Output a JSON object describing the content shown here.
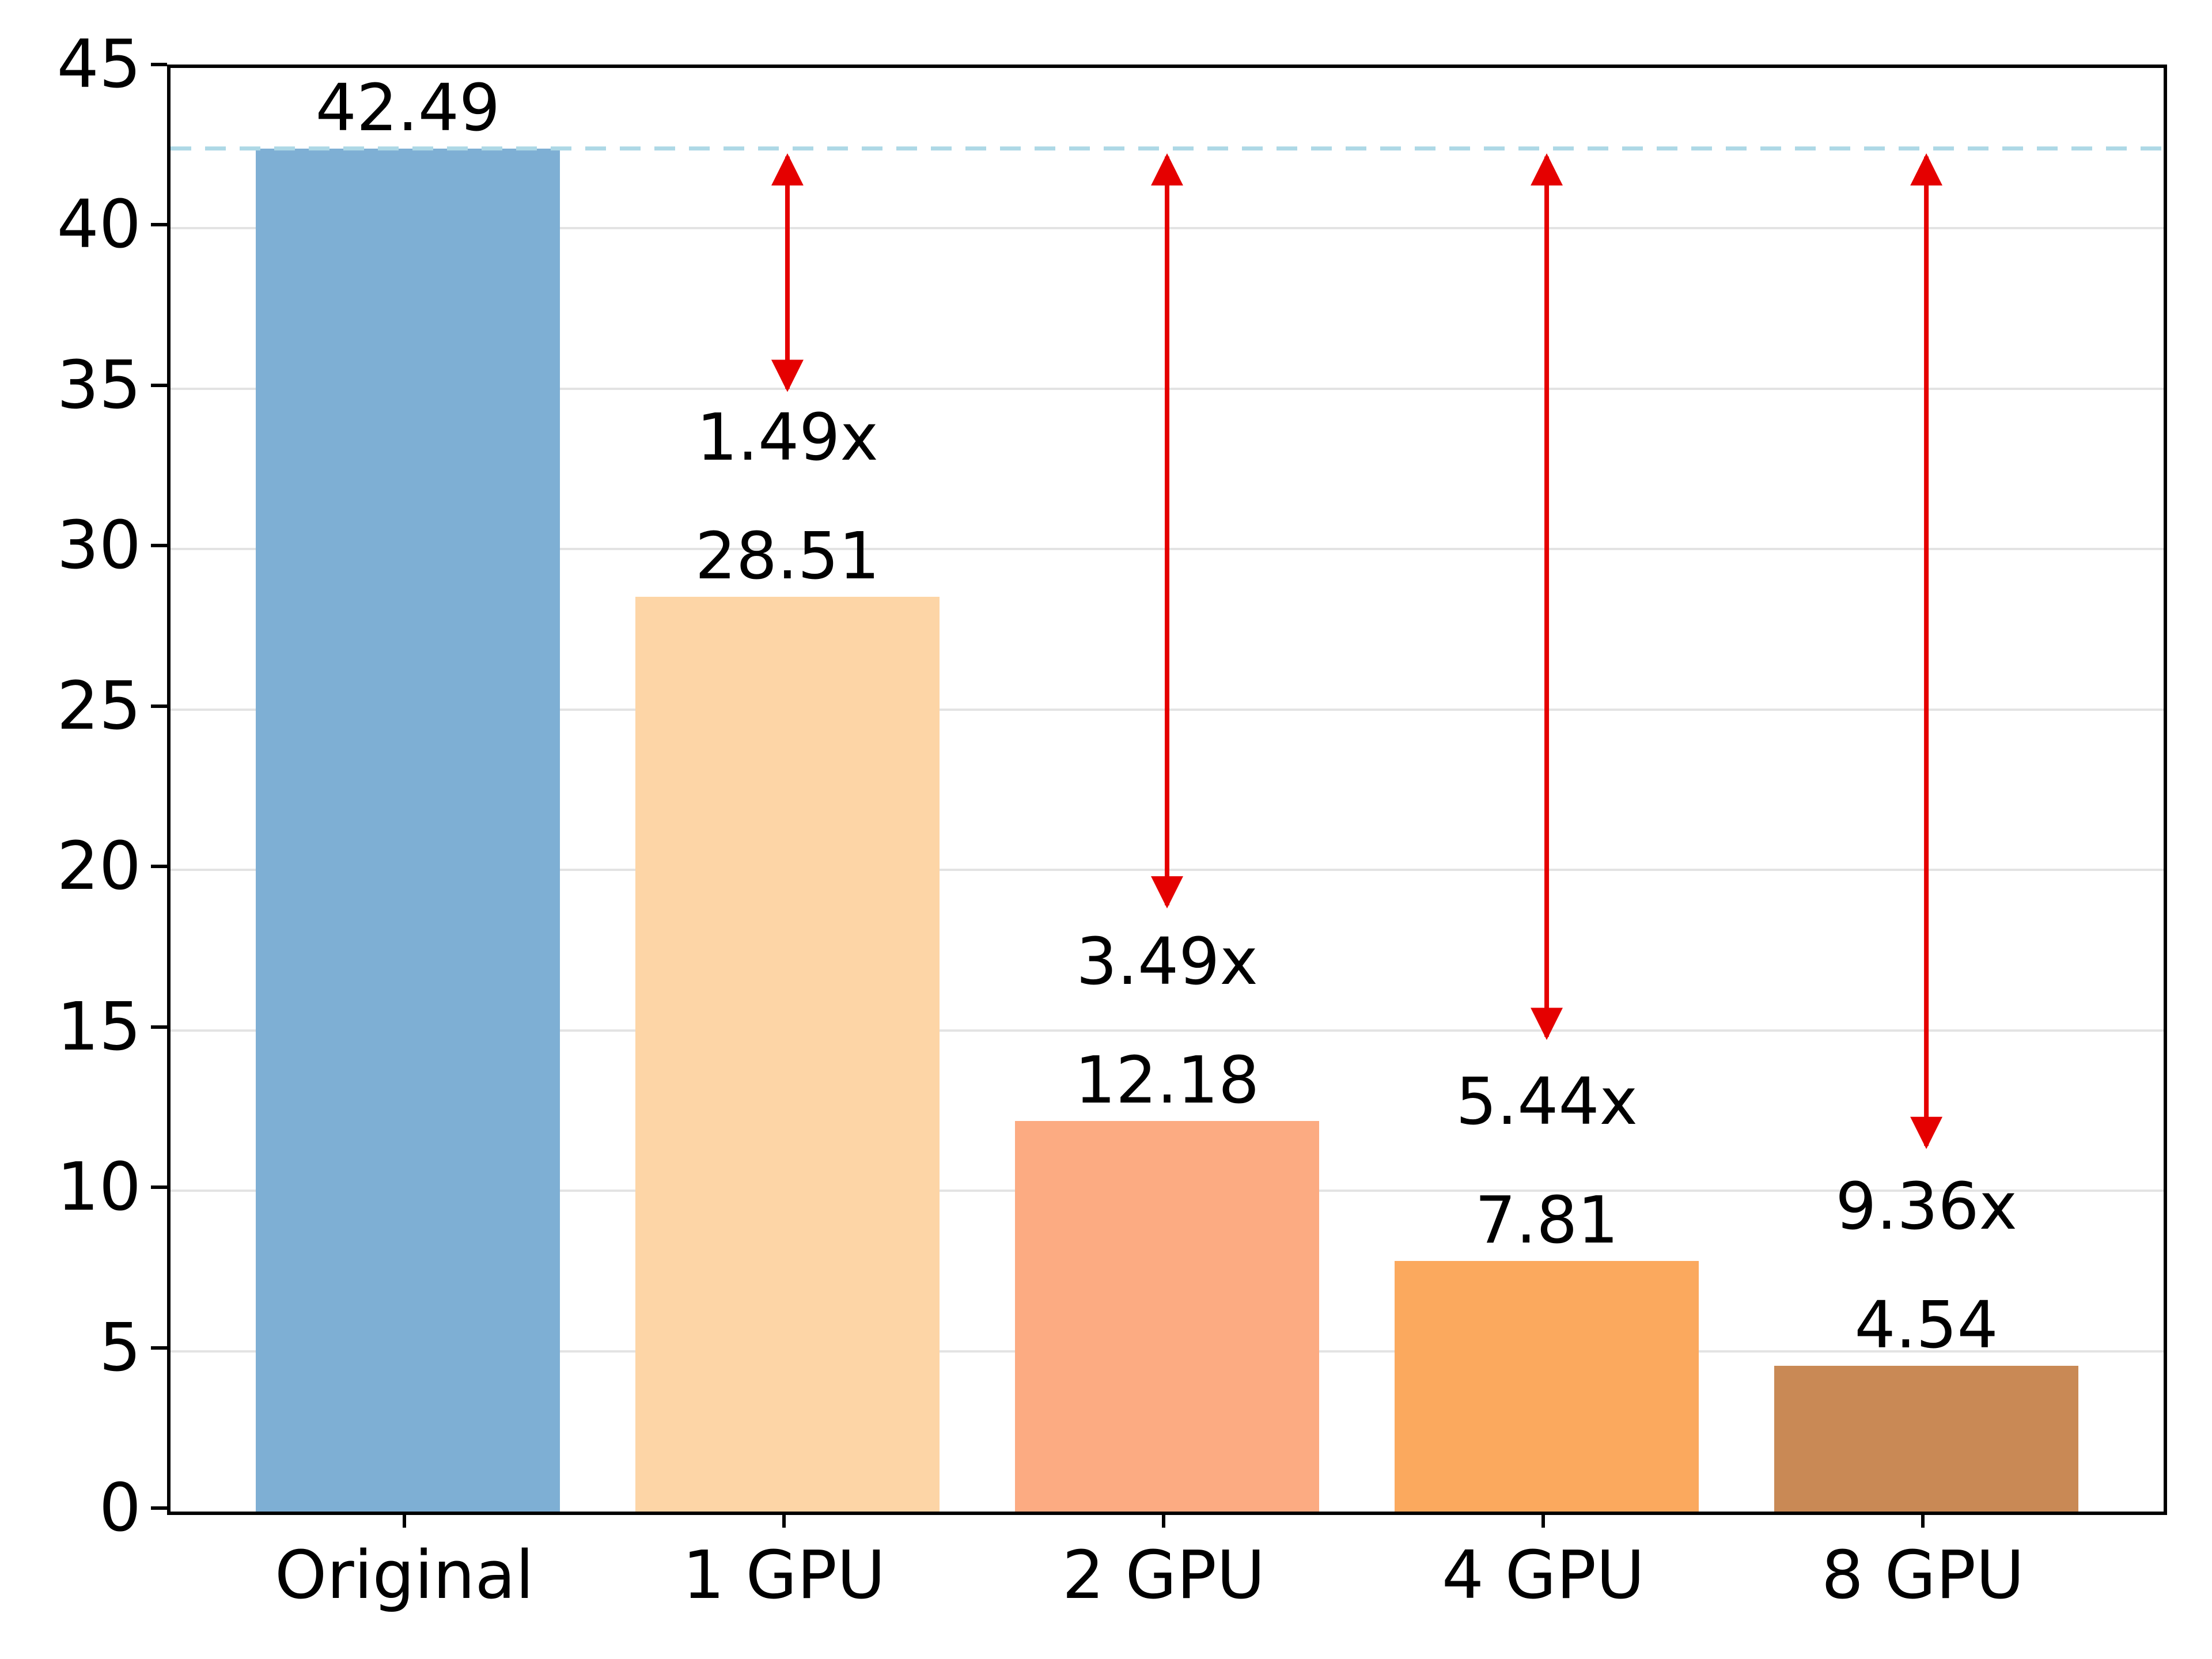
{
  "figure": {
    "background": "#ffffff",
    "title": ""
  },
  "chart_data": {
    "type": "bar",
    "title": "",
    "xlabel": "",
    "ylabel": "",
    "categories": [
      "Original",
      "1 GPU",
      "2 GPU",
      "4 GPU",
      "8 GPU"
    ],
    "values": [
      42.49,
      28.51,
      12.18,
      7.81,
      4.54
    ],
    "value_labels": [
      "42.49",
      "28.51",
      "12.18",
      "7.81",
      "4.54"
    ],
    "speedup_labels": [
      "",
      "1.49x",
      "3.49x",
      "5.44x",
      "9.36x"
    ],
    "bar_colors": [
      "#7eafd4",
      "#fdd5a6",
      "#fcab82",
      "#fba95e",
      "#c98955"
    ],
    "ylim": [
      0,
      45
    ],
    "yticks": [
      "0",
      "5",
      "10",
      "15",
      "20",
      "25",
      "30",
      "35",
      "40",
      "45"
    ],
    "grid": "horizontal",
    "grid_color": "#e3e3e3",
    "legend": "none",
    "reference_line": {
      "y": 42.49,
      "color": "#add8e6",
      "style": "dashed"
    },
    "arrows": {
      "color": "#e50000",
      "start_y": 42.49,
      "end_y": [
        null,
        35.0,
        18.9,
        14.8,
        11.4
      ]
    }
  }
}
